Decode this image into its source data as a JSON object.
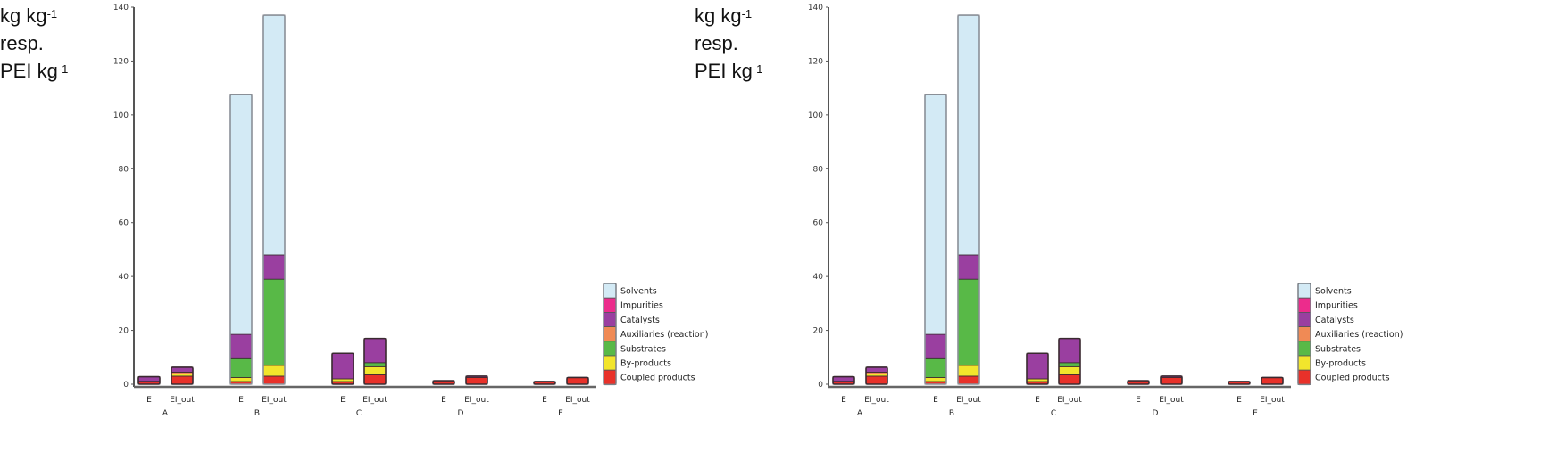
{
  "ylabel_lines": [
    "kg kg",
    "resp.",
    "PEI kg"
  ],
  "ylabel_sup": "-1",
  "chart_data": [
    {
      "type": "bar",
      "stacked": true,
      "title": "",
      "xlabel": "",
      "ylabel": "kg kg-1 resp. PEI kg-1",
      "ylim": [
        0,
        140
      ],
      "yticks": [
        0,
        20,
        40,
        60,
        80,
        100,
        120,
        140
      ],
      "groups": [
        "A",
        "B",
        "C",
        "D",
        "E"
      ],
      "categories": [
        "E",
        "EI_out",
        "E",
        "EI_out",
        "E",
        "EI_out",
        "E",
        "EI_out",
        "E",
        "EI_out"
      ],
      "legend_position": "right-bottom",
      "series": [
        {
          "name": "Coupled products",
          "color": "#e8312a",
          "values": [
            0.8,
            3.0,
            1.0,
            3.0,
            1.0,
            3.5,
            1.3,
            2.5,
            1.0,
            2.5
          ]
        },
        {
          "name": "By-products",
          "color": "#f2e52c",
          "values": [
            0.3,
            0.8,
            1.5,
            4.0,
            1.0,
            3.0,
            0,
            0,
            0,
            0
          ]
        },
        {
          "name": "Substrates",
          "color": "#58b947",
          "values": [
            0,
            0,
            7.0,
            32.0,
            0,
            1.5,
            0,
            0,
            0,
            0
          ]
        },
        {
          "name": "Auxiliaries (reaction)",
          "color": "#f08a55",
          "values": [
            0,
            0.7,
            0,
            0,
            0,
            0,
            0,
            0,
            0,
            0
          ]
        },
        {
          "name": "Catalysts",
          "color": "#9a3fa0",
          "values": [
            1.7,
            1.8,
            9.0,
            9.0,
            9.5,
            9.0,
            0,
            0.5,
            0,
            0
          ]
        },
        {
          "name": "Impurities",
          "color": "#ec2c8c",
          "values": [
            0,
            0,
            0,
            0,
            0,
            0,
            0,
            0,
            0,
            0
          ]
        },
        {
          "name": "Solvents",
          "color": "#d3eaf5",
          "values": [
            0,
            0,
            89.0,
            89.0,
            0,
            0,
            0,
            0,
            0,
            0
          ]
        }
      ],
      "legend_entries": [
        "Solvents",
        "Impurities",
        "Catalysts",
        "Auxiliaries (reaction)",
        "Substrates",
        "By-products",
        "Coupled products"
      ]
    },
    {
      "type": "bar",
      "stacked": true,
      "note": "identical duplicate panel on the right",
      "ylim": [
        0,
        140
      ],
      "groups": [
        "A",
        "B",
        "C",
        "D",
        "E"
      ],
      "categories": [
        "E",
        "EI_out",
        "E",
        "EI_out",
        "E",
        "EI_out",
        "E",
        "EI_out",
        "E",
        "EI_out"
      ]
    }
  ]
}
